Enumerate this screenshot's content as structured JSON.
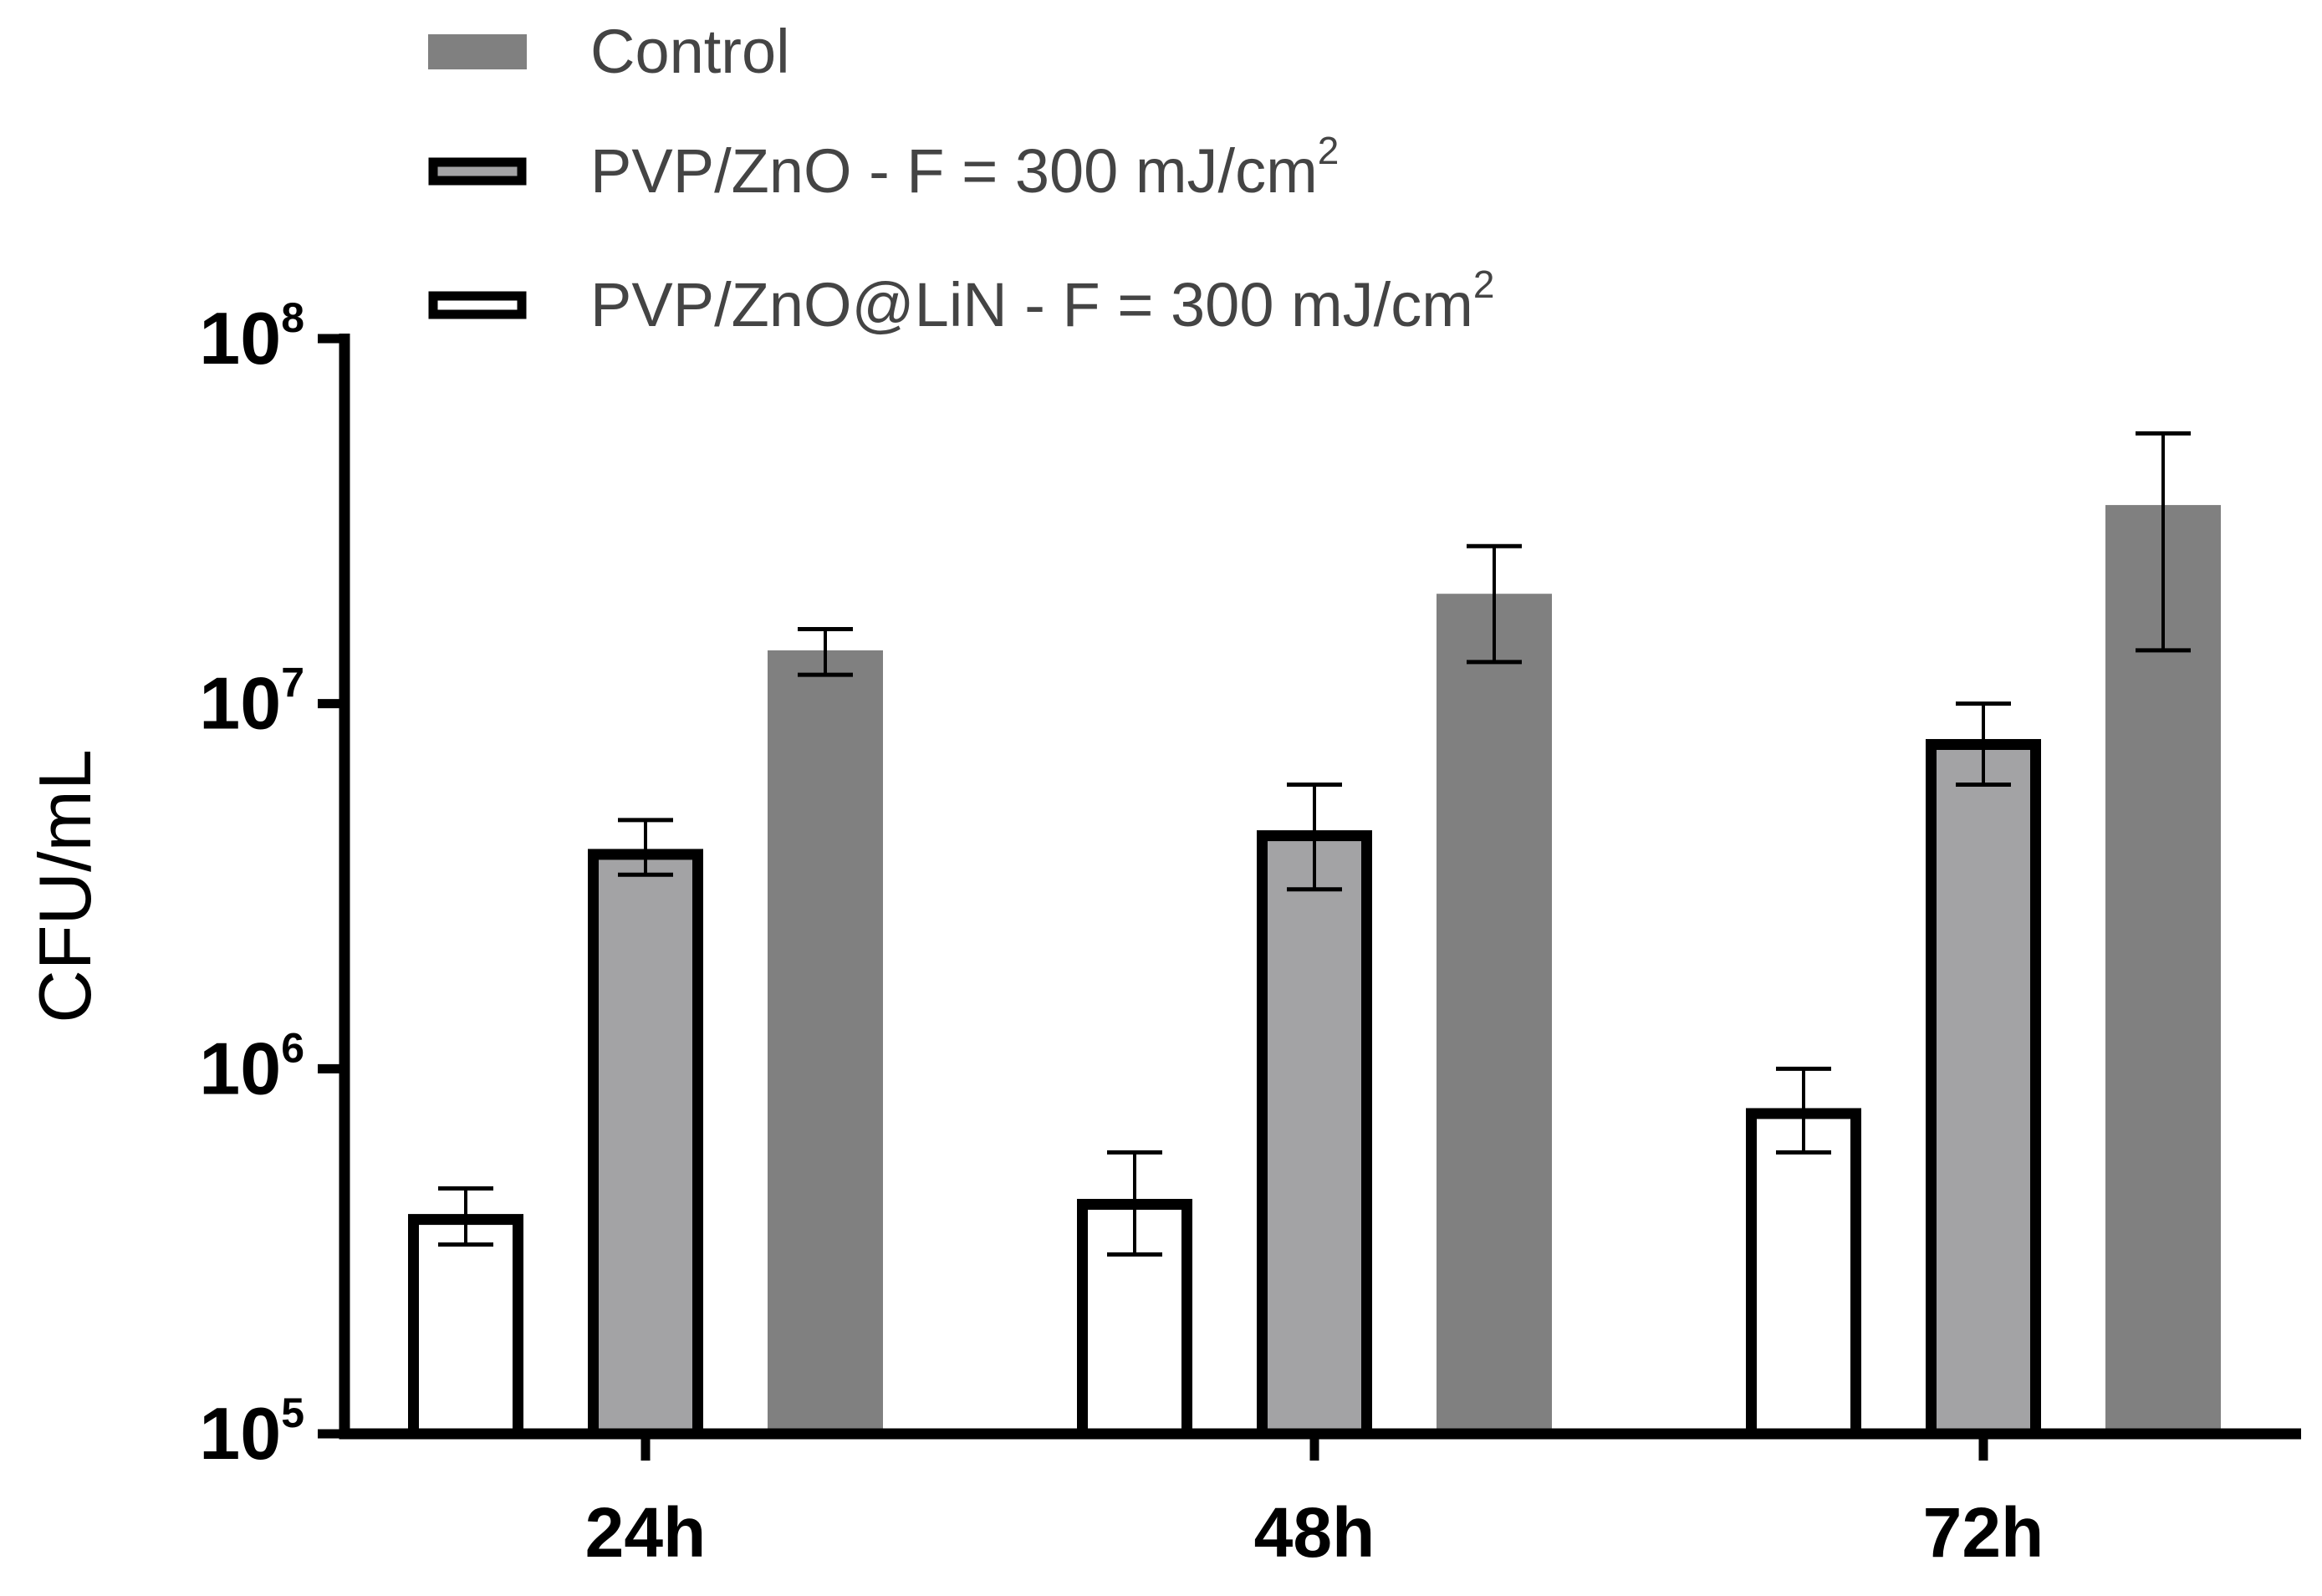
{
  "chart_data": {
    "type": "bar",
    "scale": "log",
    "title": "",
    "xlabel": "",
    "ylabel": "CFU/mL",
    "ylim": [
      100000,
      100000000
    ],
    "yticks": [
      {
        "base": "10",
        "exp": "5",
        "value": 100000
      },
      {
        "base": "10",
        "exp": "6",
        "value": 1000000
      },
      {
        "base": "10",
        "exp": "7",
        "value": 10000000
      },
      {
        "base": "10",
        "exp": "8",
        "value": 100000000
      }
    ],
    "categories": [
      "24h",
      "48h",
      "72h"
    ],
    "series": [
      {
        "name": "PVP/ZnO@LiN - F = 300 mJ/cm",
        "superscript": "2",
        "fill": "#ffffff",
        "stroke": "#000000",
        "values": [
          400000,
          440000,
          780000
        ],
        "error_low": [
          330000,
          310000,
          590000
        ],
        "error_high": [
          470000,
          590000,
          1000000
        ]
      },
      {
        "name": "PVP/ZnO - F = 300 mJ/cm",
        "superscript": "2",
        "fill": "#a3a3a5",
        "stroke": "#000000",
        "values": [
          4000000,
          4500000,
          8000000
        ],
        "error_low": [
          3400000,
          3100000,
          6000000
        ],
        "error_high": [
          4800000,
          6000000,
          10000000
        ]
      },
      {
        "name": "Control",
        "superscript": "",
        "fill": "#808080",
        "stroke": "none",
        "values": [
          14000000,
          20000000,
          35000000
        ],
        "error_low": [
          12000000,
          13000000,
          14000000
        ],
        "error_high": [
          16000000,
          27000000,
          55000000
        ]
      }
    ],
    "legend": {
      "placement": "top-left",
      "order": [
        "Control",
        "PVP/ZnO - F = 300 mJ/cm",
        "PVP/ZnO@LiN - F = 300 mJ/cm"
      ]
    },
    "grid": false
  }
}
